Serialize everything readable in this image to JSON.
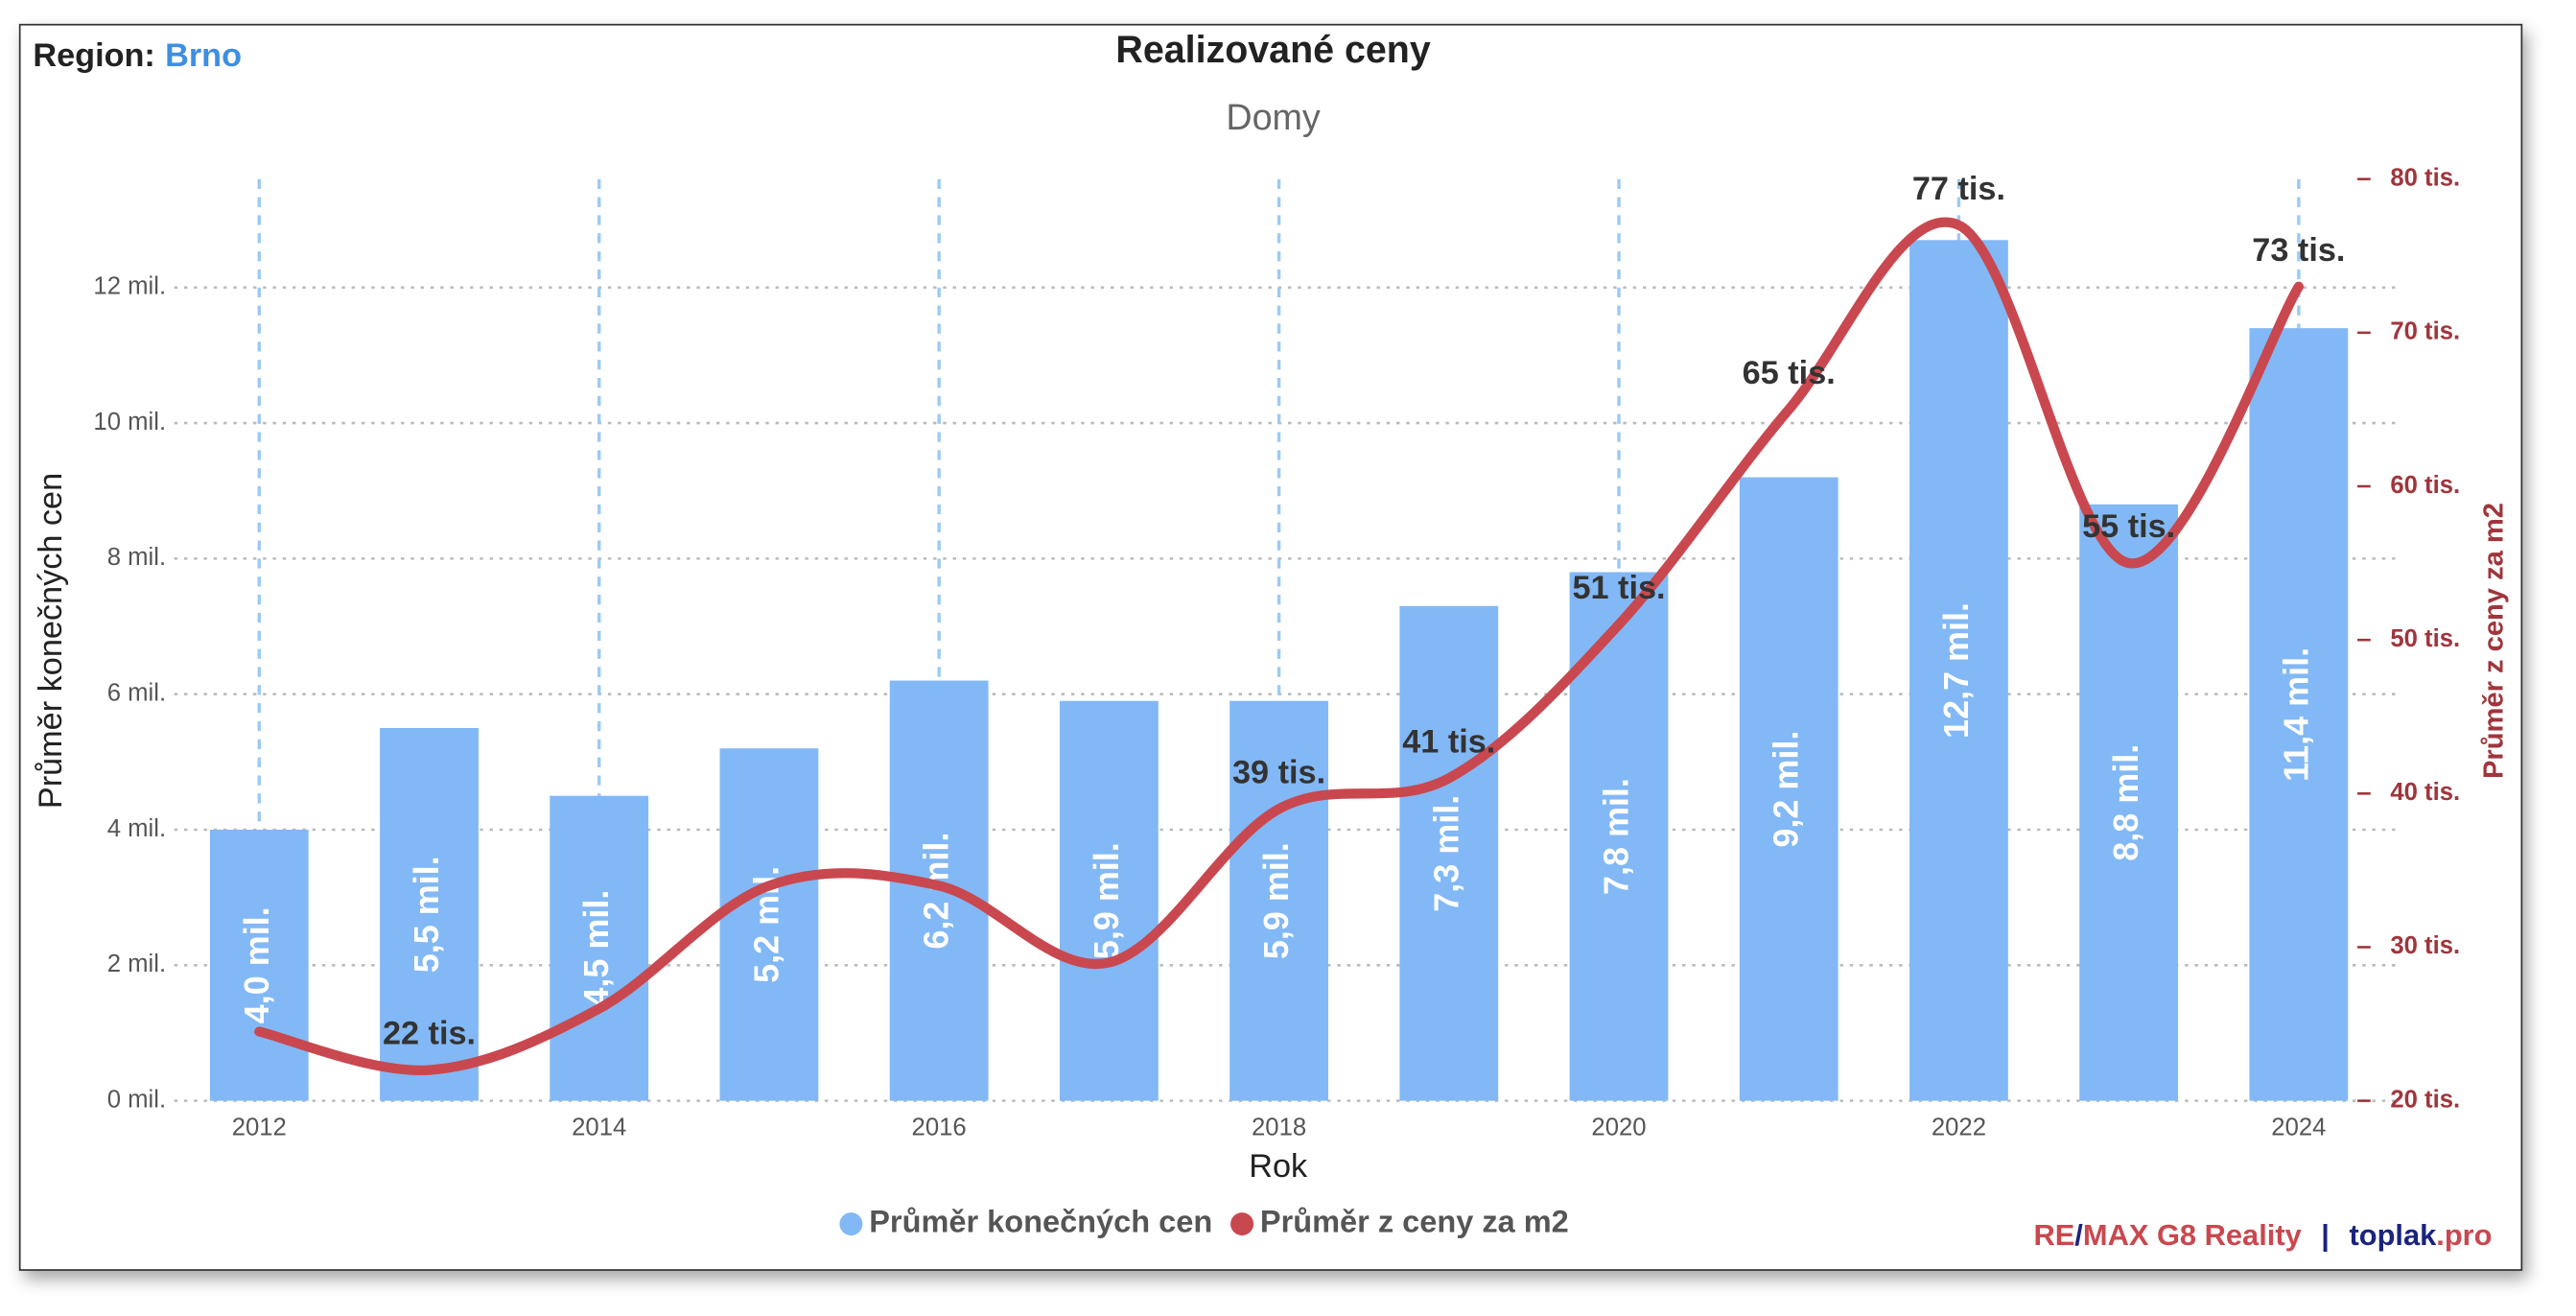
{
  "chart_data": {
    "type": "bar-line",
    "region_label": "Region:",
    "region": "Brno",
    "title": "Realizované ceny",
    "subtitle": "Domy",
    "x_label": "Rok",
    "y_label": "Průměr konečných cen",
    "y2_label": "Průměr z ceny za m2",
    "branding": [
      "RE",
      "/",
      "MAX G8 Reality",
      "|",
      "toplak",
      ".pro"
    ],
    "x": [
      2012,
      2013,
      2014,
      2015,
      2016,
      2017,
      2018,
      2019,
      2020,
      2021,
      2022,
      2023,
      2024
    ],
    "xlim": [
      2011.5,
      2024.5
    ],
    "xticks": [
      2012,
      2014,
      2016,
      2018,
      2020,
      2022,
      2024
    ],
    "ylim": [
      0,
      13.6
    ],
    "yticks": [
      {
        "value": 0,
        "label": "0 mil."
      },
      {
        "value": 2,
        "label": "2 mil."
      },
      {
        "value": 4,
        "label": "4 mil."
      },
      {
        "value": 6,
        "label": "6 mil."
      },
      {
        "value": 8,
        "label": "8 mil."
      },
      {
        "value": 10,
        "label": "10 mil."
      },
      {
        "value": 12,
        "label": "12 mil."
      }
    ],
    "y2lim": [
      20,
      80
    ],
    "y2ticks": [
      {
        "value": 20,
        "label": "20 tis."
      },
      {
        "value": 30,
        "label": "30 tis."
      },
      {
        "value": 40,
        "label": "40 tis."
      },
      {
        "value": 50,
        "label": "50 tis."
      },
      {
        "value": 60,
        "label": "60 tis."
      },
      {
        "value": 70,
        "label": "70 tis."
      },
      {
        "value": 80,
        "label": "80 tis."
      }
    ],
    "grid": true,
    "series": [
      {
        "name": "Průměr konečných cen",
        "type": "bar",
        "color": "#82b8f5",
        "values": [
          4.0,
          5.5,
          4.5,
          5.2,
          6.2,
          5.9,
          5.9,
          7.3,
          7.8,
          9.2,
          12.7,
          8.8,
          11.4
        ],
        "value_labels": [
          "4,0 mil.",
          "5,5 mil.",
          "4,5 mil.",
          "5,2 mil.",
          "6,2 mil.",
          "5,9 mil.",
          "5,9 mil.",
          "7,3 mil.",
          "7,8 mil.",
          "9,2 mil.",
          "12,7 mil.",
          "8,8 mil.",
          "11,4 mil."
        ]
      },
      {
        "name": "Průměr z ceny za m2",
        "type": "line",
        "axis": "y2",
        "color": "#c9484f",
        "values": [
          24.5,
          22,
          26,
          34,
          34,
          29,
          39,
          41,
          51,
          65,
          77,
          55,
          73
        ],
        "value_labels": [
          null,
          "22 tis.",
          null,
          null,
          null,
          null,
          "39 tis.",
          "41 tis.",
          "51 tis.",
          "65 tis.",
          "77 tis.",
          "55 tis.",
          "73 tis."
        ]
      }
    ]
  }
}
